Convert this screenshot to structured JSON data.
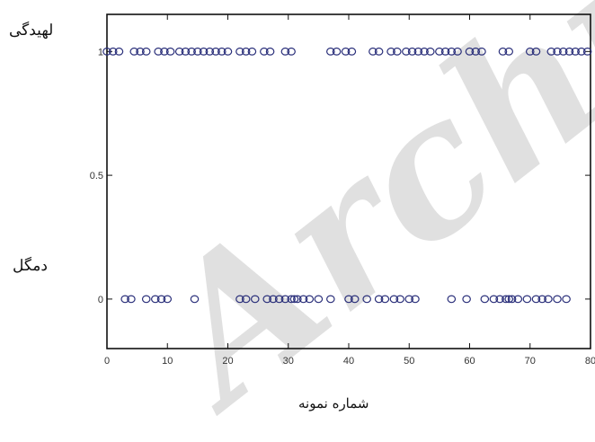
{
  "watermark": "Archive",
  "chart_data": {
    "type": "scatter",
    "xlabel": "شماره نمونه",
    "ylabel": "",
    "category_labels": {
      "top": "لهیدگی",
      "bottom": "دمگل"
    },
    "xlim": [
      0,
      80
    ],
    "ylim": [
      -0.2,
      1.15
    ],
    "xticks": [
      0,
      10,
      20,
      30,
      40,
      50,
      60,
      70,
      80
    ],
    "yticks": [
      0,
      0.5,
      1
    ],
    "ytick_labels": [
      "0",
      "0.5",
      "1"
    ],
    "marker": "open-circle",
    "marker_color": "#2a2f7a",
    "series": [
      {
        "y": 1,
        "x": [
          0,
          1,
          2,
          4.5,
          5.5,
          6.5,
          8.5,
          9.5,
          10.5,
          12,
          13,
          14,
          15,
          16,
          17,
          18,
          19,
          20,
          22,
          23,
          24,
          26,
          27,
          29.5,
          30.5,
          37,
          38,
          39.5,
          40.5,
          44,
          45,
          47,
          48,
          49.5,
          50.5,
          51.5,
          52.5,
          53.5,
          55,
          56,
          57,
          58,
          60,
          61,
          62,
          65.5,
          66.5,
          70,
          71,
          73.5,
          74.5,
          75.5,
          76.5,
          77.5,
          78.5,
          79.5
        ]
      },
      {
        "y": 0,
        "x": [
          3,
          4,
          6.5,
          8,
          9,
          10,
          14.5,
          22,
          23,
          24.5,
          26.5,
          27.5,
          28.5,
          29.5,
          30.5,
          31,
          31.5,
          32.5,
          33.5,
          35,
          37,
          40,
          41,
          43,
          45,
          46,
          47.5,
          48.5,
          50,
          51,
          57,
          59.5,
          62.5,
          64,
          65,
          66,
          66.5,
          67,
          68,
          69.5,
          71,
          72,
          73,
          74.5,
          76
        ]
      }
    ]
  }
}
